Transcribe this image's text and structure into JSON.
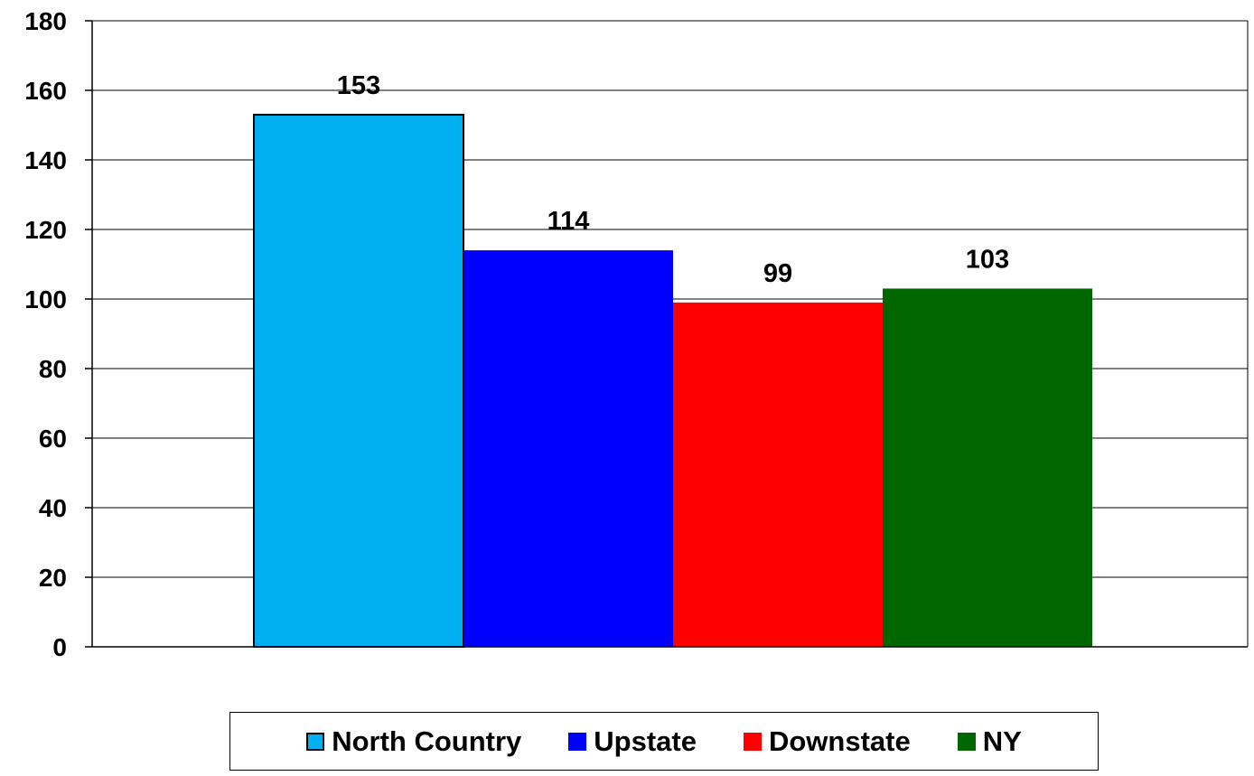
{
  "chart_data": {
    "type": "bar",
    "categories": [
      ""
    ],
    "series": [
      {
        "name": "North Country",
        "values": [
          153
        ],
        "color": "#00B0F0",
        "outlined": true
      },
      {
        "name": "Upstate",
        "values": [
          114
        ],
        "color": "#0000FF",
        "outlined": false
      },
      {
        "name": "Downstate",
        "values": [
          99
        ],
        "color": "#FF0000",
        "outlined": false
      },
      {
        "name": "NY",
        "values": [
          103
        ],
        "color": "#006600",
        "outlined": false
      }
    ],
    "data_labels": [
      "153",
      "114",
      "99",
      "103"
    ],
    "title": "",
    "xlabel": "",
    "ylabel": "",
    "ylim": [
      0,
      180
    ],
    "yticks": [
      0,
      20,
      40,
      60,
      80,
      100,
      120,
      140,
      160,
      180
    ],
    "ytick_labels": [
      "0",
      "20",
      "40",
      "60",
      "80",
      "100",
      "120",
      "140",
      "160",
      "180"
    ],
    "grid": true,
    "legend_position": "bottom"
  }
}
